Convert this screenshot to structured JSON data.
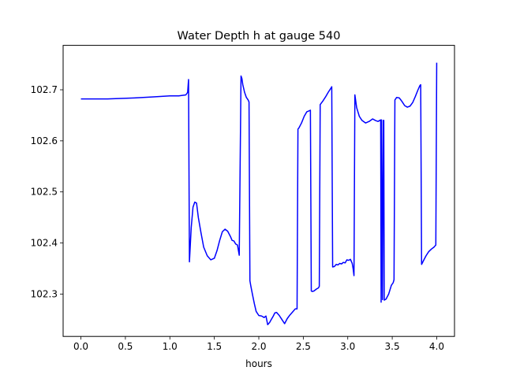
{
  "chart_data": {
    "type": "line",
    "title": "Water Depth h at gauge 540",
    "xlabel": "hours",
    "ylabel": "",
    "xlim": [
      -0.2,
      4.2
    ],
    "ylim": [
      102.217,
      102.787
    ],
    "xticks": [
      0.0,
      0.5,
      1.0,
      1.5,
      2.0,
      2.5,
      3.0,
      3.5,
      4.0
    ],
    "xtick_labels": [
      "0.0",
      "0.5",
      "1.0",
      "1.5",
      "2.0",
      "2.5",
      "3.0",
      "3.5",
      "4.0"
    ],
    "yticks": [
      102.3,
      102.4,
      102.5,
      102.6,
      102.7
    ],
    "ytick_labels": [
      "102.3",
      "102.4",
      "102.5",
      "102.6",
      "102.7"
    ],
    "grid": false,
    "legend": "none",
    "series": [
      {
        "color": "#0000ff",
        "x": [
          0.0,
          0.3,
          0.6,
          0.8,
          1.0,
          1.1,
          1.18,
          1.2,
          1.21,
          1.22,
          1.24,
          1.26,
          1.28,
          1.3,
          1.32,
          1.35,
          1.38,
          1.42,
          1.46,
          1.5,
          1.53,
          1.56,
          1.59,
          1.62,
          1.65,
          1.68,
          1.7,
          1.72,
          1.74,
          1.76,
          1.78,
          1.8,
          1.81,
          1.82,
          1.84,
          1.86,
          1.88,
          1.89,
          1.9,
          1.91,
          1.93,
          1.95,
          1.97,
          2.0,
          2.03,
          2.06,
          2.08,
          2.1,
          2.12,
          2.14,
          2.16,
          2.18,
          2.2,
          2.23,
          2.26,
          2.29,
          2.32,
          2.35,
          2.38,
          2.41,
          2.43,
          2.44,
          2.45,
          2.48,
          2.51,
          2.54,
          2.57,
          2.58,
          2.59,
          2.6,
          2.62,
          2.65,
          2.67,
          2.68,
          2.69,
          2.72,
          2.75,
          2.78,
          2.81,
          2.82,
          2.83,
          2.85,
          2.87,
          2.89,
          2.91,
          2.93,
          2.95,
          2.97,
          2.99,
          3.01,
          3.03,
          3.05,
          3.06,
          3.07,
          3.08,
          3.1,
          3.13,
          3.16,
          3.2,
          3.24,
          3.28,
          3.31,
          3.34,
          3.36,
          3.37,
          3.375,
          3.38,
          3.39,
          3.4,
          3.405,
          3.41,
          3.43,
          3.46,
          3.49,
          3.51,
          3.52,
          3.53,
          3.55,
          3.58,
          3.61,
          3.64,
          3.67,
          3.7,
          3.73,
          3.76,
          3.79,
          3.81,
          3.82,
          3.83,
          3.85,
          3.88,
          3.91,
          3.94,
          3.97,
          3.98,
          3.99,
          4.0
        ],
        "y": [
          102.682,
          102.682,
          102.684,
          102.686,
          102.688,
          102.688,
          102.69,
          102.695,
          102.72,
          102.363,
          102.43,
          102.47,
          102.48,
          102.478,
          102.45,
          102.42,
          102.392,
          102.375,
          102.367,
          102.37,
          102.385,
          102.405,
          102.422,
          102.427,
          102.423,
          102.413,
          102.405,
          102.404,
          102.398,
          102.396,
          102.376,
          102.727,
          102.722,
          102.71,
          102.695,
          102.685,
          102.68,
          102.676,
          102.326,
          102.316,
          102.298,
          102.281,
          102.266,
          102.258,
          102.257,
          102.254,
          102.257,
          102.24,
          102.244,
          102.25,
          102.256,
          102.263,
          102.264,
          102.258,
          102.25,
          102.242,
          102.252,
          102.259,
          102.265,
          102.271,
          102.271,
          102.623,
          102.625,
          102.635,
          102.648,
          102.657,
          102.659,
          102.66,
          102.306,
          102.305,
          102.306,
          102.31,
          102.312,
          102.315,
          102.671,
          102.678,
          102.686,
          102.695,
          102.703,
          102.706,
          102.353,
          102.354,
          102.358,
          102.357,
          102.36,
          102.359,
          102.362,
          102.361,
          102.367,
          102.366,
          102.368,
          102.36,
          102.35,
          102.336,
          102.69,
          102.665,
          102.648,
          102.64,
          102.635,
          102.638,
          102.643,
          102.64,
          102.638,
          102.64,
          102.641,
          102.284,
          102.641,
          102.289,
          102.64,
          102.64,
          102.288,
          102.29,
          102.3,
          102.317,
          102.322,
          102.328,
          102.68,
          102.685,
          102.684,
          102.677,
          102.669,
          102.666,
          102.668,
          102.675,
          102.687,
          102.7,
          102.708,
          102.71,
          102.358,
          102.365,
          102.375,
          102.383,
          102.388,
          102.392,
          102.394,
          102.396,
          102.753
        ]
      }
    ]
  }
}
